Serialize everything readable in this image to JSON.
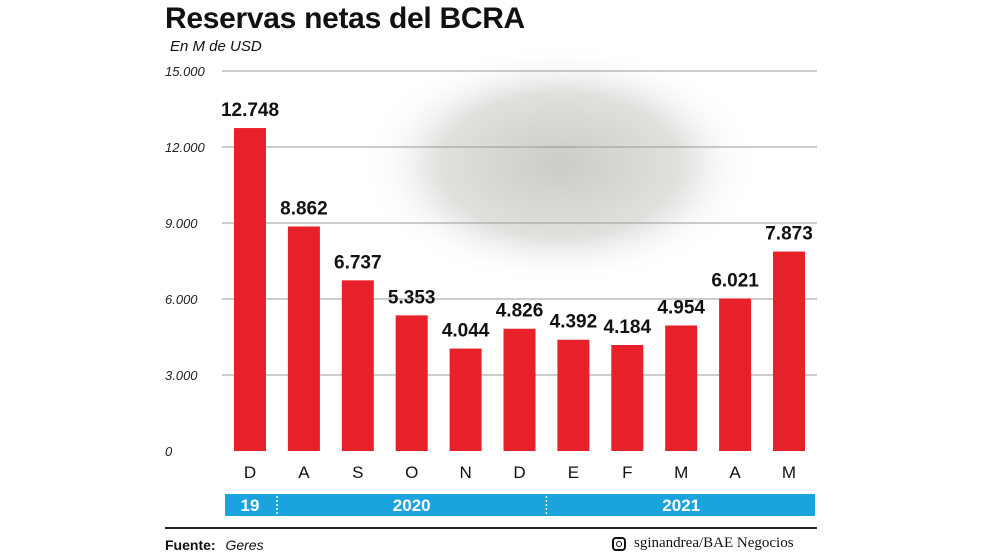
{
  "title": "Reservas netas del BCRA",
  "subtitle": "En M de USD",
  "footer": {
    "source_label": "Fuente:",
    "source_value": "Geres",
    "credit": "sginandrea/BAE Negocios",
    "credit_icon": "instagram-icon"
  },
  "colors": {
    "bar": "#e8202a",
    "year_band": "#1aa3dd",
    "grid": "#9a9a9a"
  },
  "chart_data": {
    "type": "bar",
    "title": "Reservas netas del BCRA",
    "ylabel": "En M de USD",
    "categories": [
      "D",
      "A",
      "S",
      "O",
      "N",
      "D",
      "E",
      "F",
      "M",
      "A",
      "M"
    ],
    "values": [
      12748,
      8862,
      6737,
      5353,
      4044,
      4826,
      4392,
      4184,
      4954,
      6021,
      7873
    ],
    "value_labels": [
      "12.748",
      "8.862",
      "6.737",
      "5.353",
      "4.044",
      "4.826",
      "4.392",
      "4.184",
      "4.954",
      "6.021",
      "7.873"
    ],
    "ylim": [
      0,
      15000
    ],
    "yticks": [
      0,
      3000,
      6000,
      9000,
      12000,
      15000
    ],
    "ytick_labels": [
      "0",
      "3.000",
      "6.000",
      "9.000",
      "12.000",
      "15.000"
    ],
    "grid": true,
    "year_groups": [
      {
        "label": "19",
        "start": 0,
        "end": 0
      },
      {
        "label": "2020",
        "start": 1,
        "end": 5
      },
      {
        "label": "2021",
        "start": 6,
        "end": 10
      }
    ]
  }
}
